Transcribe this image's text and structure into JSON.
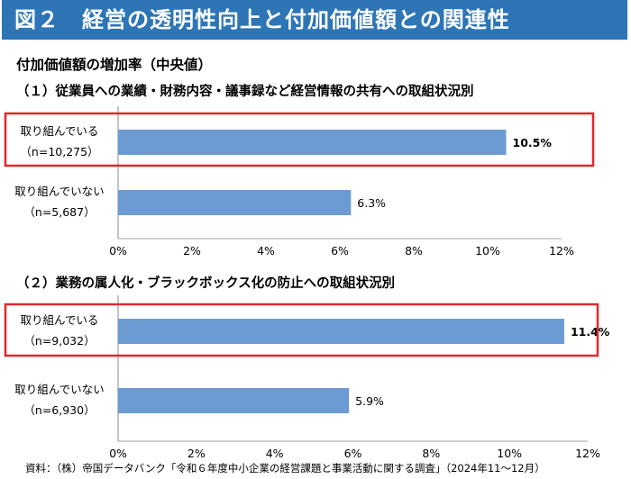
{
  "figure_title": "図２　経営の透明性向上と付加価値額との関連性",
  "subtitle": "付加価値額の増加率（中央値）",
  "source": "資料：（株）帝国データバンク「令和６年度中小企業の経営課題と事業活動に関する調査」（2024年11～12月）",
  "colors": {
    "header": "#2e75b6",
    "bar": "#6b9bd2",
    "highlight": "#e0282d"
  },
  "chart_data": [
    {
      "type": "bar",
      "orientation": "horizontal",
      "title": "（１）従業員への業績・財務内容・議事録など経営情報の共有への取組状況別",
      "categories": [
        {
          "label": "取り組んでいる",
          "n": "（n=10,275）",
          "value": 10.5,
          "value_label": "10.5%",
          "highlighted": true
        },
        {
          "label": "取り組んでいない",
          "n": "（n=5,687）",
          "value": 6.3,
          "value_label": "6.3%",
          "highlighted": false
        }
      ],
      "xlim": [
        0,
        12
      ],
      "ticks": [
        "0%",
        "2%",
        "4%",
        "6%",
        "8%",
        "10%",
        "12%"
      ],
      "unit": "%"
    },
    {
      "type": "bar",
      "orientation": "horizontal",
      "title": "（２）業務の属人化・ブラックボックス化の防止への取組状況別",
      "categories": [
        {
          "label": "取り組んでいる",
          "n": "（n=9,032）",
          "value": 11.4,
          "value_label": "11.4%",
          "highlighted": true
        },
        {
          "label": "取り組んでいない",
          "n": "（n=6,930）",
          "value": 5.9,
          "value_label": "5.9%",
          "highlighted": false
        }
      ],
      "xlim": [
        0,
        12
      ],
      "ticks": [
        "0%",
        "2%",
        "4%",
        "6%",
        "8%",
        "10%",
        "12%"
      ],
      "unit": "%"
    }
  ]
}
